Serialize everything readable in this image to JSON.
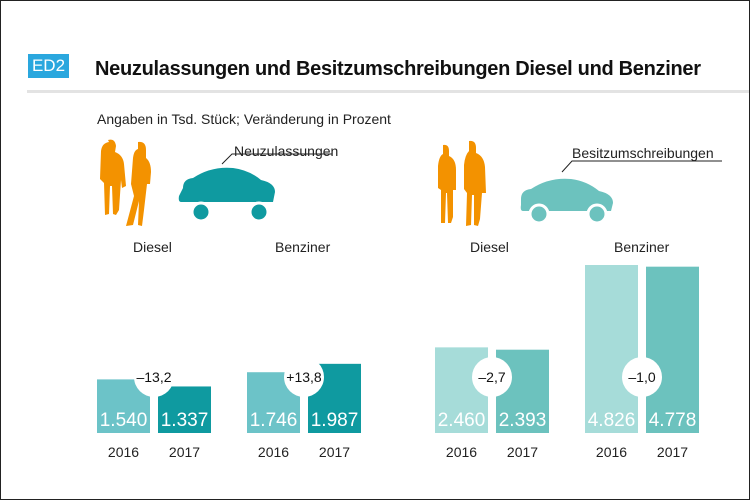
{
  "badge": "ED2",
  "title": "Neuzulassungen und Besitzumschreibungen Diesel und Benziner",
  "subtitle": "Angaben in Tsd. Stück; Veränderung in Prozent",
  "sections": [
    {
      "label": "Neuzulassungen",
      "car_color": "#0f9aa0"
    },
    {
      "label": "Besitzumschreibungen",
      "car_color": "#6cc2be"
    }
  ],
  "person_color": "#f39200",
  "chart_data": {
    "type": "bar",
    "ylabel": "",
    "xlabel": "",
    "groups": [
      {
        "section": "Neuzulassungen",
        "category": "Diesel",
        "years": [
          "2016",
          "2017"
        ],
        "values": [
          1540,
          1337
        ],
        "value_labels": [
          "1.540",
          "1.337"
        ],
        "change": "–13,2",
        "colors": [
          "#6cc3c8",
          "#0f9aa0"
        ]
      },
      {
        "section": "Neuzulassungen",
        "category": "Benziner",
        "years": [
          "2016",
          "2017"
        ],
        "values": [
          1746,
          1987
        ],
        "value_labels": [
          "1.746",
          "1.987"
        ],
        "change": "+13,8",
        "colors": [
          "#6cc3c8",
          "#0f9aa0"
        ]
      },
      {
        "section": "Besitzumschreibungen",
        "category": "Diesel",
        "years": [
          "2016",
          "2017"
        ],
        "values": [
          2460,
          2393
        ],
        "value_labels": [
          "2.460",
          "2.393"
        ],
        "change": "–2,7",
        "colors": [
          "#a6dcd9",
          "#6cc2be"
        ]
      },
      {
        "section": "Besitzumschreibungen",
        "category": "Benziner",
        "years": [
          "2016",
          "2017"
        ],
        "values": [
          4826,
          4778
        ],
        "value_labels": [
          "4.826",
          "4.778"
        ],
        "change": "–1,0",
        "colors": [
          "#a6dcd9",
          "#6cc2be"
        ]
      }
    ]
  }
}
